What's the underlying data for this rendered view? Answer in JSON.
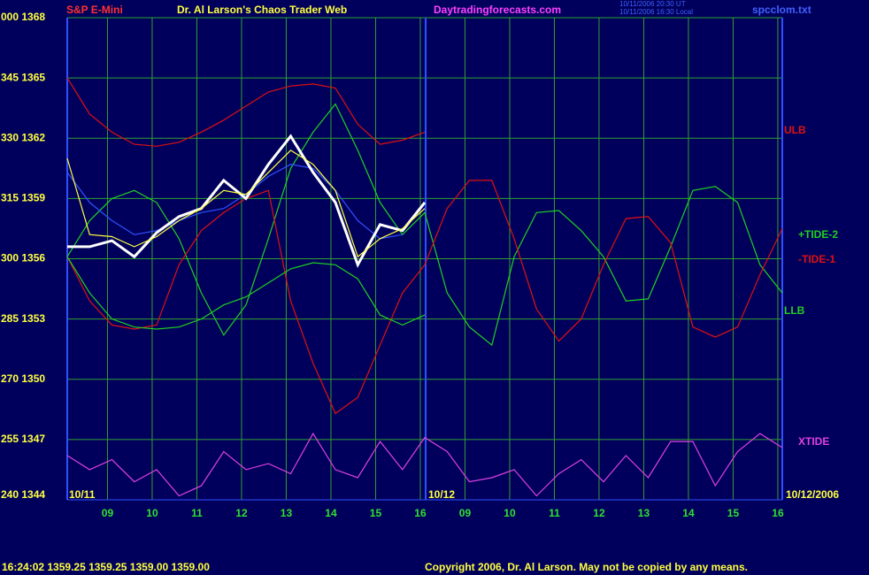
{
  "chart_data": {
    "type": "line",
    "title": "Dr. Al Larson's Chaos Trader Web",
    "symbol": "S&P E-Mini",
    "site": "Daytradingforecasts.com",
    "stamp_lines": [
      "10/11/2006 20:30 UT",
      "10/11/2006 16:30 Local"
    ],
    "file": "spcclom.txt",
    "day_labels": [
      "10/11",
      "10/12",
      "10/12/2006"
    ],
    "quote": "16:24:02  1359.25 1359.25 1359.00 1359.00",
    "copyright": "Copyright 2006, Dr. Al Larson. May not be copied by any means.",
    "grid": true,
    "xlim": [
      8.1,
      24.1
    ],
    "xticks": [
      {
        "value": 9,
        "label": "09"
      },
      10,
      11,
      12,
      13,
      14,
      15,
      16,
      {
        "value": 17,
        "label": "09"
      },
      {
        "value": 18,
        "label": "10"
      },
      {
        "value": 19,
        "label": "11"
      },
      {
        "value": 20,
        "label": "12"
      },
      {
        "value": 21,
        "label": "13"
      },
      {
        "value": 22,
        "label": "14"
      },
      {
        "value": 23,
        "label": "15"
      },
      {
        "value": 24,
        "label": "16"
      }
    ],
    "ylim": [
      1344,
      1368
    ],
    "yticks": [
      {
        "value": 1344,
        "label": "240 1344"
      },
      {
        "value": 1347,
        "label": "255 1347"
      },
      {
        "value": 1350,
        "label": "270 1350"
      },
      {
        "value": 1353,
        "label": "285 1353"
      },
      {
        "value": 1356,
        "label": "300 1356"
      },
      {
        "value": 1359,
        "label": "315 1359"
      },
      {
        "value": 1362,
        "label": "330 1362"
      },
      {
        "value": 1365,
        "label": "345 1365"
      },
      {
        "value": 1368,
        "label": "000 1368"
      }
    ],
    "x": [
      8.1,
      8.6,
      9.1,
      9.6,
      10.1,
      10.6,
      11.1,
      11.6,
      12.1,
      12.6,
      13.1,
      13.6,
      14.1,
      14.6,
      15.1,
      15.6,
      16.1,
      16.6,
      17.1,
      17.6,
      18.1,
      18.6,
      19.1,
      19.6,
      20.1,
      20.6,
      21.1,
      21.6,
      22.1,
      22.6,
      23.1,
      23.6,
      24.1
    ],
    "series": [
      {
        "name": "ULB",
        "color": "#e01010",
        "values": [
          1365.0,
          1363.2,
          1362.3,
          1361.7,
          1361.6,
          1361.8,
          1362.3,
          1362.9,
          1363.6,
          1364.3,
          1364.6,
          1364.7,
          1364.5,
          1362.7,
          1361.7,
          1361.9,
          1362.3,
          null,
          null,
          null,
          null,
          null,
          null,
          null,
          null,
          null,
          null,
          null,
          null,
          null,
          null,
          null,
          null
        ]
      },
      {
        "name": "+TIDE-2",
        "color": "#20d020",
        "values": [
          1356.1,
          1357.9,
          1359.0,
          1359.4,
          1358.8,
          1357.0,
          1354.3,
          1352.2,
          1353.7,
          1357.0,
          1360.5,
          1362.3,
          1363.7,
          1361.4,
          1358.8,
          1357.2,
          1358.3,
          1354.3,
          1352.6,
          1351.7,
          1356.1,
          1358.3,
          1358.4,
          1357.4,
          1356.1,
          1353.9,
          1354.0,
          1356.6,
          1359.4,
          1359.6,
          1358.8,
          1355.7,
          1354.3
        ]
      },
      {
        "name": "-TIDE-1",
        "color": "#e01010",
        "values": [
          1356.1,
          1353.9,
          1352.7,
          1352.5,
          1352.7,
          1355.7,
          1357.4,
          1358.3,
          1359.0,
          1359.4,
          1353.9,
          1350.8,
          1348.3,
          1349.1,
          1351.7,
          1354.3,
          1355.7,
          1358.5,
          1359.9,
          1359.9,
          1357.0,
          1353.5,
          1351.9,
          1353.0,
          1355.7,
          1358.0,
          1358.1,
          1356.8,
          1352.6,
          1352.1,
          1352.6,
          1355.2,
          1357.5
        ]
      },
      {
        "name": "LLB",
        "color": "#20d020",
        "values": [
          1356.1,
          1354.3,
          1353.0,
          1352.6,
          1352.5,
          1352.6,
          1353.0,
          1353.7,
          1354.1,
          1354.8,
          1355.5,
          1355.8,
          1355.7,
          1355.0,
          1353.2,
          1352.7,
          1353.2,
          null,
          null,
          null,
          null,
          null,
          null,
          null,
          null,
          null,
          null,
          null,
          null,
          null,
          null,
          null,
          null
        ]
      },
      {
        "name": "XTIDE",
        "color": "#e040e0",
        "values": [
          1346.2,
          1345.5,
          1346.0,
          1344.9,
          1345.5,
          1344.2,
          1344.7,
          1346.4,
          1345.5,
          1345.8,
          1345.3,
          1347.3,
          1345.5,
          1345.1,
          1346.9,
          1345.5,
          1347.1,
          1346.4,
          1344.9,
          1345.1,
          1345.5,
          1344.2,
          1345.3,
          1346.0,
          1344.9,
          1346.2,
          1345.1,
          1346.9,
          1346.9,
          1344.7,
          1346.4,
          1347.3,
          1346.6
        ]
      },
      {
        "color": "#3050ff",
        "values": [
          1360.3,
          1358.8,
          1357.9,
          1357.2,
          1357.4,
          1357.9,
          1358.3,
          1358.5,
          1359.2,
          1360.1,
          1360.7,
          1360.5,
          1359.4,
          1357.9,
          1357.0,
          1357.2,
          null,
          null,
          null,
          null,
          null,
          null,
          null,
          null,
          null,
          null,
          null,
          null,
          null,
          null,
          null,
          null,
          null
        ]
      },
      {
        "color": "#ffffff",
        "values": [
          1356.6,
          1356.6,
          1356.9,
          1356.1,
          1357.3,
          1358.1,
          1358.5,
          1359.9,
          1359.0,
          1360.7,
          1362.1,
          1360.3,
          1358.8,
          1355.7,
          1357.7,
          1357.4,
          1358.8,
          null,
          null,
          null,
          null,
          null,
          null,
          null,
          null,
          null,
          null,
          null,
          null,
          null,
          null,
          null,
          null
        ]
      },
      {
        "color": "#ffff40",
        "values": [
          1361.0,
          1357.2,
          1357.1,
          1356.6,
          1357.1,
          1357.9,
          1358.5,
          1359.4,
          1359.2,
          1360.3,
          1361.4,
          1360.7,
          1359.4,
          1356.1,
          1357.0,
          1357.5,
          1358.5,
          null,
          null,
          null,
          null,
          null,
          null,
          null,
          null,
          null,
          null,
          null,
          null,
          null,
          null,
          null,
          null
        ]
      }
    ]
  }
}
